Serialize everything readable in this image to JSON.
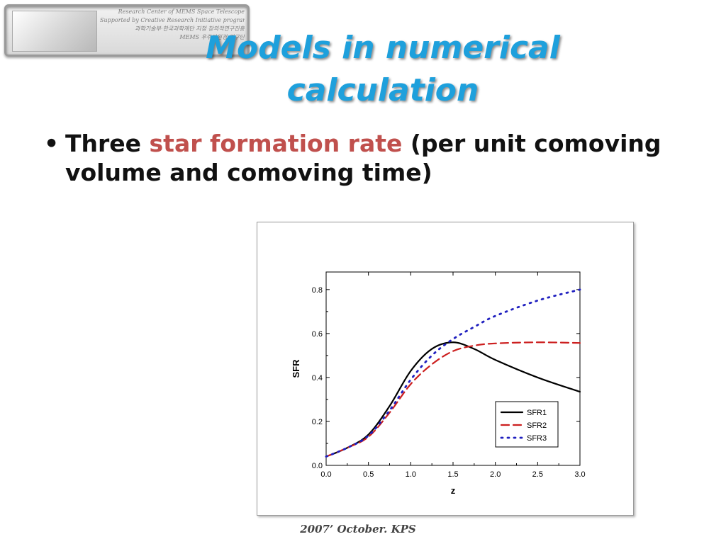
{
  "logo": {
    "lines": [
      "Research Center of MEMS Space Telescope",
      "Supported by Creative Research Initiative program of Ministry of Science and Technology",
      "과학기술부·한국과학재단 지정 창의적연구진흥",
      "MEMS 우주망원경 연구단"
    ]
  },
  "title": {
    "line1": "Models in numerical",
    "line2": "calculation"
  },
  "bullet": {
    "marker": "•",
    "prefix": "Three ",
    "highlight": "star formation rate",
    "suffix": " (per unit comoving volume and comoving time)"
  },
  "footer": "2007’ October. KPS",
  "colors": {
    "title": "#1ea0dc",
    "highlight": "#c0504d",
    "sfr1": "#000000",
    "sfr2": "#cc1f1f",
    "sfr3": "#1f1fbf"
  },
  "chart_data": {
    "type": "line",
    "xlabel": "z",
    "ylabel": "SFR",
    "xlim": [
      0.0,
      3.0
    ],
    "ylim": [
      0.0,
      0.88
    ],
    "xticks": [
      "0.0",
      "0.5",
      "1.0",
      "1.5",
      "2.0",
      "2.5",
      "3.0"
    ],
    "yticks": [
      "0.0",
      "0.2",
      "0.4",
      "0.6",
      "0.8"
    ],
    "legend_position": "lower-right",
    "grid": false,
    "series": [
      {
        "name": "SFR1",
        "style": "solid",
        "x": [
          0.0,
          0.25,
          0.5,
          0.75,
          1.0,
          1.25,
          1.5,
          1.75,
          2.0,
          2.5,
          3.0
        ],
        "y": [
          0.04,
          0.08,
          0.14,
          0.27,
          0.43,
          0.53,
          0.56,
          0.53,
          0.48,
          0.4,
          0.335
        ]
      },
      {
        "name": "SFR2",
        "style": "dashed",
        "x": [
          0.0,
          0.25,
          0.5,
          0.75,
          1.0,
          1.25,
          1.5,
          1.75,
          2.0,
          2.5,
          3.0
        ],
        "y": [
          0.04,
          0.08,
          0.13,
          0.24,
          0.37,
          0.46,
          0.52,
          0.545,
          0.555,
          0.56,
          0.557
        ]
      },
      {
        "name": "SFR3",
        "style": "dotted",
        "x": [
          0.0,
          0.25,
          0.5,
          0.75,
          1.0,
          1.25,
          1.5,
          1.75,
          2.0,
          2.5,
          3.0
        ],
        "y": [
          0.04,
          0.08,
          0.135,
          0.25,
          0.39,
          0.5,
          0.575,
          0.63,
          0.68,
          0.75,
          0.8
        ]
      }
    ]
  }
}
